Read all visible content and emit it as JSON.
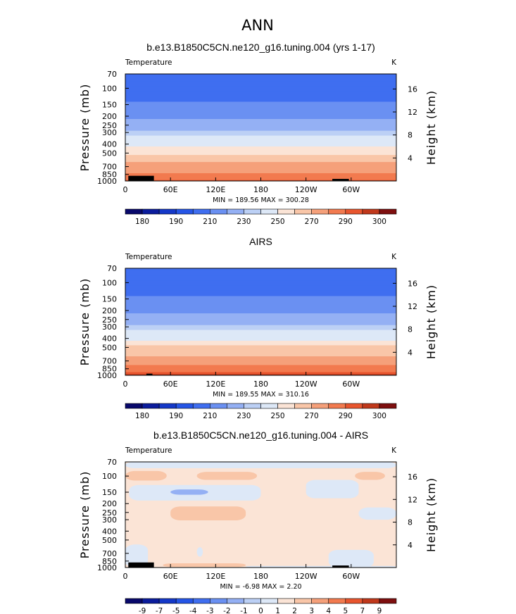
{
  "figure": {
    "suptitle": "ANN"
  },
  "chart_data": [
    {
      "type": "heatmap",
      "title": "b.e13.B1850C5CN.ne120_g16.tuning.004 (yrs 1-17)",
      "subtitle_left": "Temperature",
      "units": "K",
      "ylabel": "Pressure  (mb)",
      "ylabel_right": "Height  (km)",
      "x_ticks": [
        "0",
        "60E",
        "120E",
        "180",
        "120W",
        "60W"
      ],
      "x_tick_values": [
        0,
        60,
        120,
        180,
        240,
        300
      ],
      "xlim": [
        0,
        360
      ],
      "y_ticks": [
        "70",
        "100",
        "150",
        "200",
        "250",
        "300",
        "400",
        "500",
        "700",
        "850",
        "1000"
      ],
      "y_tick_values": [
        70,
        100,
        150,
        200,
        250,
        300,
        400,
        500,
        700,
        850,
        1000
      ],
      "ylim": [
        1000,
        70
      ],
      "yscale": "log",
      "height_ticks": [
        "4",
        "8",
        "12",
        "16"
      ],
      "height_tick_values_km": [
        4,
        8,
        12,
        16
      ],
      "min_max_text": "MIN = 189.56   MAX = 300.28",
      "min": 189.56,
      "max": 300.28,
      "levels": [
        180,
        185,
        190,
        200,
        210,
        220,
        230,
        240,
        250,
        260,
        270,
        280,
        290,
        295,
        300
      ],
      "colorbar_labels": [
        "180",
        "190",
        "210",
        "230",
        "250",
        "270",
        "290",
        "300"
      ],
      "colorbar_label_indices": [
        1,
        3,
        5,
        7,
        9,
        11,
        13,
        15
      ],
      "colors": [
        "#08086b",
        "#0b1c9c",
        "#1438c8",
        "#2555e6",
        "#3f6ef0",
        "#6a90f2",
        "#94b0f4",
        "#bcd0f5",
        "#dde8f7",
        "#fbe4d6",
        "#f9c6a8",
        "#f5a07a",
        "#f27a4f",
        "#e8552e",
        "#c0381b",
        "#7e0f0f"
      ],
      "field": {
        "pressure_mb": [
          70,
          80,
          90,
          100,
          115,
          130,
          150,
          175,
          200,
          230,
          250,
          275,
          300,
          350,
          400,
          450,
          500,
          550,
          600,
          650,
          700,
          750,
          800,
          850,
          900,
          950,
          1000
        ],
        "temperature_K": [
          207,
          204,
          203,
          203,
          205,
          208,
          211,
          214,
          217,
          221,
          225,
          229,
          233,
          240,
          247,
          253,
          259,
          263,
          267,
          270,
          273,
          276,
          279,
          282,
          285,
          288,
          293
        ]
      },
      "topography": [
        {
          "lon": [
            4,
            38
          ],
          "top_mb": 880
        },
        {
          "lon": [
            275,
            297
          ],
          "top_mb": 950
        }
      ]
    },
    {
      "type": "heatmap",
      "title": "AIRS",
      "subtitle_left": "Temperature",
      "units": "K",
      "ylabel": "Pressure  (mb)",
      "ylabel_right": "Height  (km)",
      "x_ticks": [
        "0",
        "60E",
        "120E",
        "180",
        "120W",
        "60W"
      ],
      "x_tick_values": [
        0,
        60,
        120,
        180,
        240,
        300
      ],
      "xlim": [
        0,
        360
      ],
      "y_ticks": [
        "70",
        "100",
        "150",
        "200",
        "250",
        "300",
        "400",
        "500",
        "700",
        "850",
        "1000"
      ],
      "y_tick_values": [
        70,
        100,
        150,
        200,
        250,
        300,
        400,
        500,
        700,
        850,
        1000
      ],
      "ylim": [
        1000,
        70
      ],
      "yscale": "log",
      "height_ticks": [
        "4",
        "8",
        "12",
        "16"
      ],
      "height_tick_values_km": [
        4,
        8,
        12,
        16
      ],
      "min_max_text": "MIN = 189.55   MAX = 310.16",
      "min": 189.55,
      "max": 310.16,
      "levels": [
        180,
        185,
        190,
        200,
        210,
        220,
        230,
        240,
        250,
        260,
        270,
        280,
        290,
        295,
        300
      ],
      "colorbar_labels": [
        "180",
        "190",
        "210",
        "230",
        "250",
        "270",
        "290",
        "300"
      ],
      "colorbar_label_indices": [
        1,
        3,
        5,
        7,
        9,
        11,
        13,
        15
      ],
      "colors": [
        "#08086b",
        "#0b1c9c",
        "#1438c8",
        "#2555e6",
        "#3f6ef0",
        "#6a90f2",
        "#94b0f4",
        "#bcd0f5",
        "#dde8f7",
        "#fbe4d6",
        "#f9c6a8",
        "#f5a07a",
        "#f27a4f",
        "#e8552e",
        "#c0381b",
        "#7e0f0f"
      ],
      "field": {
        "pressure_mb": [
          70,
          80,
          90,
          100,
          115,
          130,
          150,
          175,
          200,
          230,
          250,
          275,
          300,
          350,
          400,
          450,
          500,
          550,
          600,
          650,
          700,
          750,
          800,
          850,
          900,
          950,
          1000
        ],
        "temperature_K": [
          207,
          204,
          203,
          203,
          205,
          208,
          211,
          214,
          217,
          221,
          225,
          229,
          234,
          241,
          248,
          254,
          260,
          264,
          268,
          271,
          274,
          277,
          280,
          283,
          286,
          290,
          296
        ]
      },
      "topography": [
        {
          "lon": [
            28,
            36
          ],
          "top_mb": 960
        }
      ]
    },
    {
      "type": "heatmap",
      "title": "b.e13.B1850C5CN.ne120_g16.tuning.004 - AIRS",
      "subtitle_left": "Temperature",
      "units": "K",
      "ylabel": "Pressure  (mb)",
      "ylabel_right": "Height  (km)",
      "x_ticks": [
        "0",
        "60E",
        "120E",
        "180",
        "120W",
        "60W"
      ],
      "x_tick_values": [
        0,
        60,
        120,
        180,
        240,
        300
      ],
      "xlim": [
        0,
        360
      ],
      "y_ticks": [
        "70",
        "100",
        "150",
        "200",
        "250",
        "300",
        "400",
        "500",
        "700",
        "850",
        "1000"
      ],
      "y_tick_values": [
        70,
        100,
        150,
        200,
        250,
        300,
        400,
        500,
        700,
        850,
        1000
      ],
      "ylim": [
        1000,
        70
      ],
      "yscale": "log",
      "height_ticks": [
        "4",
        "8",
        "12",
        "16"
      ],
      "height_tick_values_km": [
        4,
        8,
        12,
        16
      ],
      "min_max_text": "MIN =   -6.98   MAX =    2.20",
      "min": -6.98,
      "max": 2.2,
      "levels": [
        -9,
        -8,
        -7,
        -6,
        -5,
        -4,
        -3,
        -2,
        -1,
        0,
        1,
        2,
        3,
        4,
        5,
        6,
        7,
        8,
        9
      ],
      "colorbar_labels": [
        "-9",
        "-7",
        "-5",
        "-4",
        "-3",
        "-2",
        "-1",
        "0",
        "1",
        "2",
        "3",
        "4",
        "5",
        "7",
        "9"
      ],
      "colorbar_label_indices": [
        1,
        2,
        3,
        4,
        5,
        6,
        7,
        8,
        9,
        10,
        11,
        12,
        13,
        14,
        15
      ],
      "colors": [
        "#08086b",
        "#0b1c9c",
        "#1438c8",
        "#2555e6",
        "#3f6ef0",
        "#6a90f2",
        "#94b0f4",
        "#bcd0f5",
        "#dde8f7",
        "#fbe4d6",
        "#f9c6a8",
        "#f5a07a",
        "#f27a4f",
        "#e8552e",
        "#c0381b",
        "#7e0f0f"
      ],
      "background_value": -0.5,
      "regions": [
        {
          "value": -1.5,
          "lon": [
            0,
            360
          ],
          "p": [
            70,
            82
          ]
        },
        {
          "value": 0.5,
          "lon": [
            0,
            55
          ],
          "p": [
            88,
            112
          ]
        },
        {
          "value": 0.5,
          "lon": [
            95,
            175
          ],
          "p": [
            90,
            110
          ]
        },
        {
          "value": 0.5,
          "lon": [
            305,
            345
          ],
          "p": [
            90,
            110
          ]
        },
        {
          "value": -1.5,
          "lon": [
            5,
            180
          ],
          "p": [
            125,
            185
          ]
        },
        {
          "value": -3.5,
          "lon": [
            60,
            110
          ],
          "p": [
            140,
            160
          ]
        },
        {
          "value": -1.5,
          "lon": [
            240,
            310
          ],
          "p": [
            110,
            175
          ]
        },
        {
          "value": 0.5,
          "lon": [
            60,
            160
          ],
          "p": [
            215,
            305
          ]
        },
        {
          "value": -1.5,
          "lon": [
            310,
            360
          ],
          "p": [
            220,
            300
          ]
        },
        {
          "value": -1.5,
          "lon": [
            0,
            30
          ],
          "p": [
            560,
            1000
          ]
        },
        {
          "value": -1.5,
          "lon": [
            270,
            330
          ],
          "p": [
            640,
            1000
          ]
        },
        {
          "value": -1.5,
          "lon": [
            95,
            103
          ],
          "p": [
            600,
            760
          ]
        },
        {
          "value": 0.5,
          "lon": [
            50,
            160
          ],
          "p": [
            900,
            985
          ]
        },
        {
          "value": -1.5,
          "lon": [
            160,
            360
          ],
          "p": [
            960,
            1000
          ]
        }
      ],
      "topography": [
        {
          "lon": [
            4,
            38
          ],
          "top_mb": 880
        },
        {
          "lon": [
            275,
            297
          ],
          "top_mb": 950
        }
      ]
    }
  ]
}
